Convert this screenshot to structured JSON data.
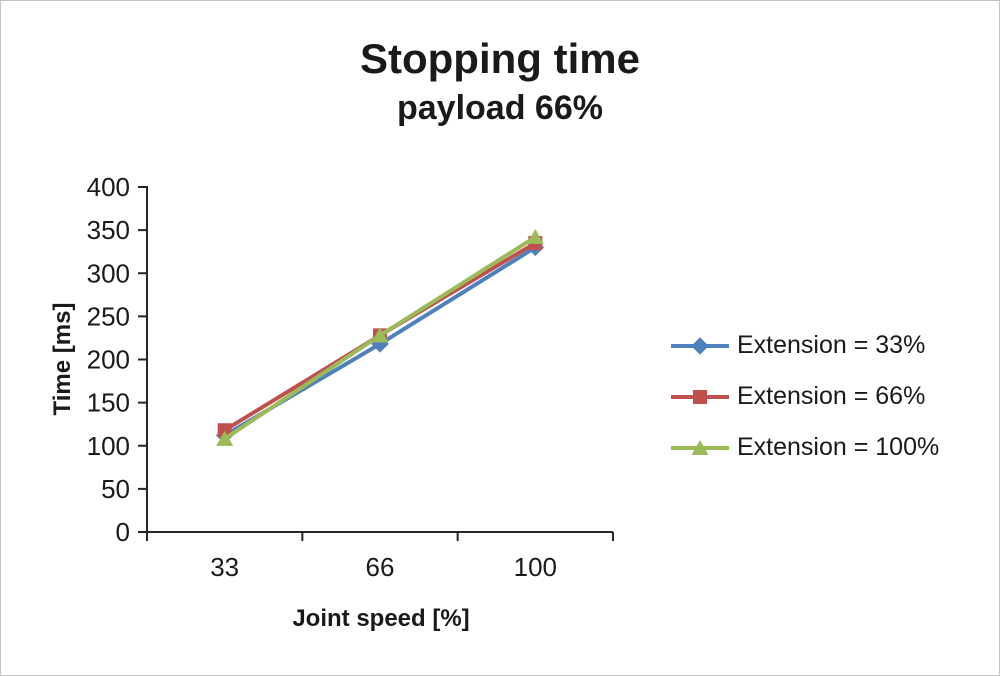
{
  "chart_data": {
    "type": "line",
    "title": "Stopping time",
    "subtitle": "payload 66%",
    "xlabel": "Joint speed [%]",
    "ylabel": "Time [ms]",
    "categories": [
      "33",
      "66",
      "100"
    ],
    "ylim": [
      0,
      400
    ],
    "ytick_step": 50,
    "yticks": [
      0,
      50,
      100,
      150,
      200,
      250,
      300,
      350,
      400
    ],
    "grid": false,
    "legend_position": "right",
    "axis_color": "#262626",
    "text_color": "#1a1a1a",
    "series": [
      {
        "name": "Extension = 33%",
        "color": "#4f81bd",
        "marker": "diamond",
        "values": [
          112,
          218,
          330
        ]
      },
      {
        "name": "Extension = 66%",
        "color": "#c0504d",
        "marker": "square",
        "values": [
          118,
          228,
          335
        ]
      },
      {
        "name": "Extension = 100%",
        "color": "#9bbb59",
        "marker": "triangle",
        "values": [
          108,
          228,
          342
        ]
      }
    ]
  }
}
